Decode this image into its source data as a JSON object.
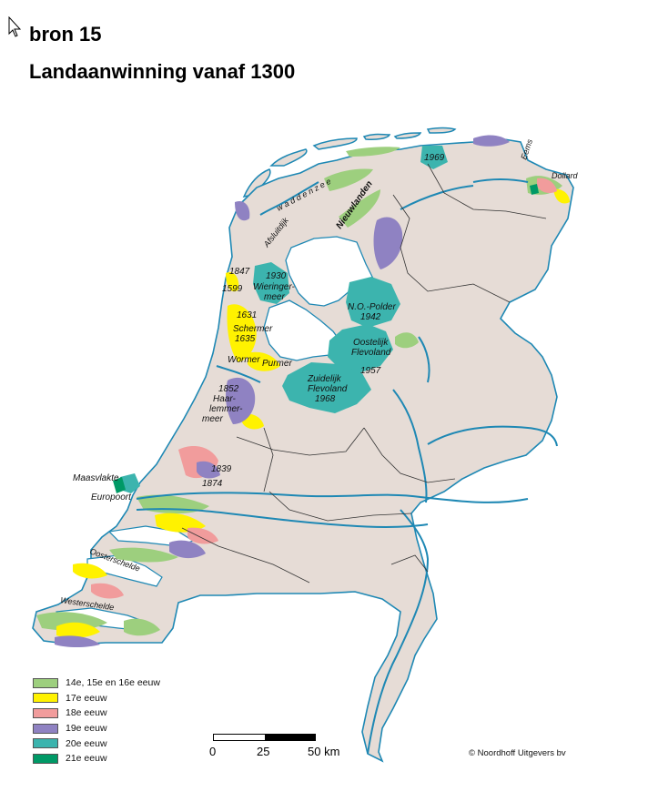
{
  "source_label": "bron 15",
  "title": "Landaanwinning vanaf 1300",
  "map_labels": {
    "waddenzee": "w a d d e n z e e",
    "afsluitdijk": "Afsluitdijk",
    "nieuwlanden": "Nieuwlanden",
    "eems": "Eems",
    "dollard": "Dollard",
    "y1969": "1969",
    "y1847": "1847",
    "y1599": "1599",
    "wieringermeer_year": "1930",
    "wieringermeer_1": "Wieringer-",
    "wieringermeer_2": "meer",
    "y1631": "1631",
    "schermer": "Schermer",
    "y1635": "1635",
    "wormer": "Wormer",
    "purmer": "Purmer",
    "nop_1": "N.O.-Polder",
    "nop_year": "1942",
    "oost_1": "Oostelijk",
    "oost_2": "Flevoland",
    "oost_year": "1957",
    "zuid_1": "Zuidelijk",
    "zuid_2": "Flevoland",
    "zuid_year": "1968",
    "y1852": "1852",
    "haar_1": "Haar-",
    "haar_2": "lemmer-",
    "haar_3": "meer",
    "y1839": "1839",
    "y1874": "1874",
    "maasvlakte": "Maasvlakte",
    "europoort": "Europoort",
    "oosterschelde": "Oosterschelde",
    "westerschelde": "Westerschelde"
  },
  "legend": [
    {
      "label": "14e, 15e en 16e eeuw",
      "color": "#9dcf7e"
    },
    {
      "label": "17e eeuw",
      "color": "#fff200"
    },
    {
      "label": "18e eeuw",
      "color": "#f19c9c"
    },
    {
      "label": "19e eeuw",
      "color": "#8f82c2"
    },
    {
      "label": "20e eeuw",
      "color": "#3cb4ae"
    },
    {
      "label": "21e eeuw",
      "color": "#009966"
    }
  ],
  "scale": {
    "ticks": [
      "0",
      "25",
      "50 km"
    ]
  },
  "copyright": "© Noordhoff Uitgevers bv",
  "colors": {
    "land": "#e6dcd6",
    "water": "#ffffff",
    "rivers": "#1e88b4",
    "borders": "#333333"
  }
}
